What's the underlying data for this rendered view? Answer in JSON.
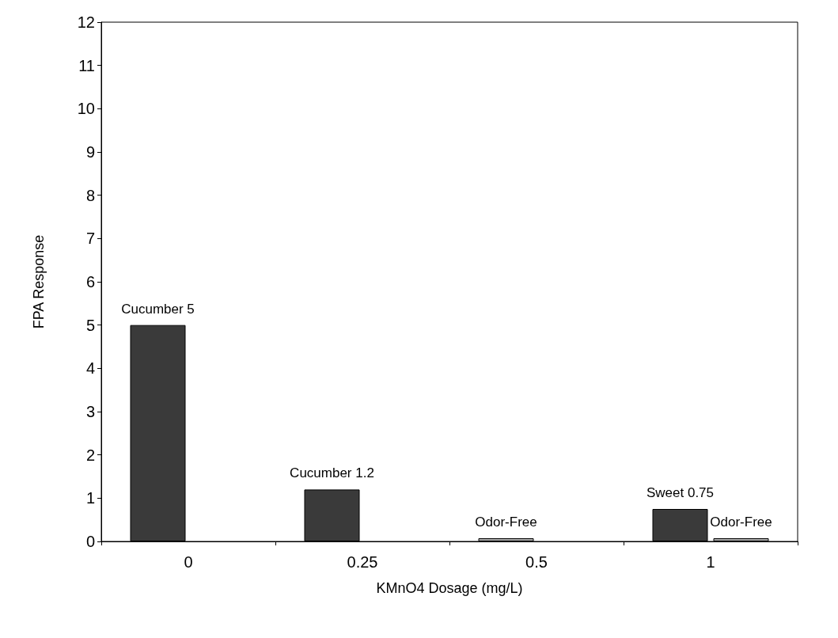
{
  "chart_data": {
    "type": "bar",
    "xlabel": "KMnO4 Dosage (mg/L)",
    "ylabel": "FPA Response",
    "categories": [
      "0",
      "0.25",
      "0.5",
      "1"
    ],
    "series": [
      {
        "colors": [
          "#3a3a3a",
          "#3a3a3a",
          "#a8a8a8",
          "#3a3a3a"
        ],
        "values": [
          5,
          1.2,
          0,
          0.75
        ],
        "value_labels": [
          "Cucumber 5",
          "Cucumber 1.2",
          "Odor-Free",
          "Sweet 0.75"
        ]
      },
      {
        "color": "#a8a8a8",
        "values": [
          null,
          null,
          null,
          0
        ],
        "value_labels": [
          null,
          null,
          null,
          "Odor-Free"
        ]
      }
    ],
    "ylim": [
      0,
      12
    ],
    "yticks": [
      0,
      1,
      2,
      3,
      4,
      5,
      6,
      7,
      8,
      9,
      10,
      11,
      12
    ]
  }
}
